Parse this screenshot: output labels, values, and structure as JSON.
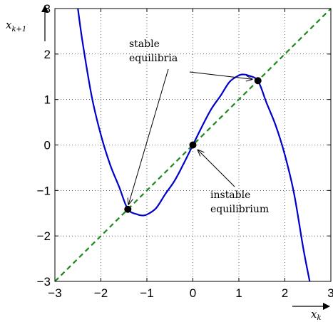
{
  "chart_data": {
    "type": "line",
    "title": "",
    "xlabel": "x_k",
    "ylabel": "x_{k+1}",
    "xlabel_parts": {
      "base": "x",
      "sub": "k"
    },
    "ylabel_parts": {
      "base": "x",
      "sub": "k+1"
    },
    "xlim": [
      -3,
      3
    ],
    "ylim": [
      -3,
      3
    ],
    "xticks": [
      "−3",
      "−2",
      "−1",
      "0",
      "1",
      "2",
      "3"
    ],
    "yticks": [
      "−3",
      "−2",
      "−1",
      "0",
      "1",
      "2",
      "3"
    ],
    "grid": true,
    "series": [
      {
        "color": "#0000cc",
        "style": "solid",
        "x": [
          -2.5,
          -2.4,
          -2.2,
          -2.0,
          -1.8,
          -1.6,
          -1.414,
          -1.2,
          -1.1,
          -1.0,
          -0.8,
          -0.6,
          -0.4,
          -0.2,
          0.0,
          0.2,
          0.4,
          0.6,
          0.8,
          1.0,
          1.1,
          1.2,
          1.414,
          1.6,
          1.8,
          2.0,
          2.2,
          2.4,
          2.54
        ],
        "y": [
          3.0,
          2.27,
          1.07,
          0.22,
          -0.43,
          -0.93,
          -1.41,
          -1.53,
          -1.55,
          -1.53,
          -1.39,
          -1.08,
          -0.79,
          -0.41,
          0.0,
          0.41,
          0.79,
          1.08,
          1.39,
          1.53,
          1.55,
          1.53,
          1.41,
          0.93,
          0.43,
          -0.22,
          -1.07,
          -2.27,
          -3.0
        ]
      },
      {
        "color": "#1a8a1a",
        "style": "dashed",
        "x": [
          -3,
          3
        ],
        "y": [
          -3,
          3
        ]
      }
    ],
    "points": [
      {
        "x": -1.414,
        "y": -1.414
      },
      {
        "x": 0.0,
        "y": 0.0
      },
      {
        "x": 1.414,
        "y": 1.414
      }
    ],
    "annotations": [
      {
        "lines": [
          "stable",
          "equilibria"
        ],
        "targets": [
          {
            "x": -1.414,
            "y": -1.414
          },
          {
            "x": 1.414,
            "y": 1.414
          }
        ]
      },
      {
        "lines": [
          "instable",
          "equilibrium"
        ],
        "targets": [
          {
            "x": 0.0,
            "y": 0.0
          }
        ]
      }
    ]
  }
}
